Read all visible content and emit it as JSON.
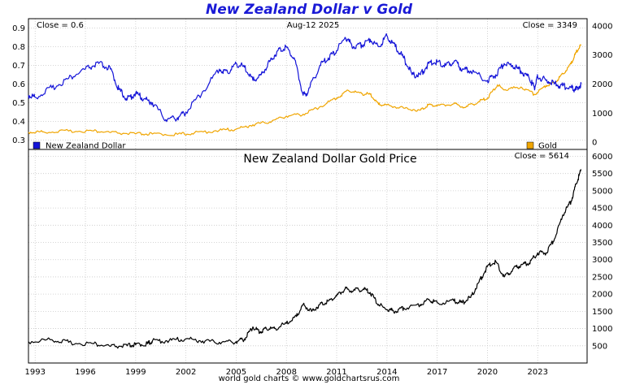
{
  "title": "New Zealand Dollar v Gold",
  "credit": "world gold charts © www.goldchartsrus.com",
  "colors": {
    "nzd": "#1414d8",
    "gold": "#f0a500",
    "price": "#000000",
    "grid": "#c8c8c8"
  },
  "chart_data": [
    {
      "type": "line",
      "title": "",
      "date_label": "Aug-12  2025",
      "left_close_label": "Close = 0.6",
      "right_close_label": "Close = 3349",
      "ylim_left": [
        0.25,
        0.95
      ],
      "ylim_right": [
        -250,
        4250
      ],
      "yticks_left": [
        "0.9",
        "0.8",
        "0.7",
        "0.6",
        "0.5",
        "0.4",
        "0.3"
      ],
      "yticks_right": [
        "4000",
        "3000",
        "2000",
        "1000",
        "0"
      ],
      "grid": true,
      "legend": [
        "bottom-left",
        "bottom-right"
      ],
      "series": [
        {
          "name": "New Zealand Dollar",
          "axis": "left",
          "color": "#1414d8",
          "x": [
            1992.6,
            1993.0,
            1994.0,
            1995.0,
            1996.0,
            1996.8,
            1997.5,
            1998.0,
            1998.5,
            1999.0,
            1999.5,
            2000.0,
            2000.8,
            2001.5,
            2002.0,
            2003.0,
            2004.0,
            2004.5,
            2005.0,
            2005.5,
            2006.0,
            2006.5,
            2007.0,
            2007.5,
            2008.0,
            2008.5,
            2009.0,
            2009.3,
            2010.0,
            2010.5,
            2011.0,
            2011.5,
            2012.0,
            2012.5,
            2013.0,
            2013.5,
            2014.0,
            2014.5,
            2015.0,
            2015.5,
            2016.0,
            2016.5,
            2017.0,
            2017.5,
            2018.0,
            2018.5,
            2019.0,
            2020.0,
            2020.5,
            2021.0,
            2021.5,
            2022.0,
            2022.5,
            2022.8,
            2023.0,
            2023.5,
            2024.0,
            2024.5,
            2025.0,
            2025.3,
            2025.6
          ],
          "y": [
            0.54,
            0.53,
            0.58,
            0.63,
            0.68,
            0.71,
            0.68,
            0.57,
            0.52,
            0.55,
            0.52,
            0.5,
            0.41,
            0.42,
            0.45,
            0.56,
            0.68,
            0.66,
            0.71,
            0.69,
            0.62,
            0.65,
            0.72,
            0.78,
            0.8,
            0.73,
            0.54,
            0.56,
            0.7,
            0.74,
            0.78,
            0.85,
            0.8,
            0.81,
            0.84,
            0.8,
            0.86,
            0.8,
            0.74,
            0.65,
            0.65,
            0.71,
            0.72,
            0.7,
            0.72,
            0.68,
            0.67,
            0.62,
            0.65,
            0.71,
            0.7,
            0.67,
            0.63,
            0.58,
            0.64,
            0.62,
            0.6,
            0.59,
            0.58,
            0.57,
            0.6
          ]
        },
        {
          "name": "Gold",
          "axis": "right",
          "color": "#f0a500",
          "x": [
            1992.6,
            1993.5,
            1995.0,
            1996.5,
            1997.5,
            1999.0,
            2000.0,
            2001.5,
            2002.5,
            2004.0,
            2005.0,
            2006.0,
            2007.0,
            2008.0,
            2009.0,
            2010.0,
            2011.0,
            2011.7,
            2012.5,
            2013.0,
            2013.5,
            2014.0,
            2015.0,
            2016.0,
            2016.5,
            2017.0,
            2018.0,
            2018.7,
            2019.5,
            2020.0,
            2020.6,
            2021.0,
            2022.0,
            2022.8,
            2023.5,
            2024.0,
            2024.5,
            2025.0,
            2025.3,
            2025.6
          ],
          "y": [
            345,
            355,
            385,
            390,
            330,
            285,
            280,
            270,
            315,
            410,
            445,
            600,
            700,
            900,
            960,
            1220,
            1520,
            1780,
            1670,
            1650,
            1300,
            1280,
            1170,
            1100,
            1300,
            1250,
            1320,
            1200,
            1400,
            1520,
            1970,
            1800,
            1900,
            1650,
            1950,
            2050,
            2350,
            2700,
            3100,
            3349
          ]
        }
      ]
    },
    {
      "type": "line",
      "title": "New Zealand Dollar Gold Price",
      "close_label": "Close = 5614",
      "ylim": [
        0,
        6200
      ],
      "yticks": [
        "6000",
        "5500",
        "5000",
        "4500",
        "4000",
        "3500",
        "3000",
        "2500",
        "2000",
        "1500",
        "1000",
        "500"
      ],
      "xticks": [
        "1993",
        "1996",
        "1999",
        "2002",
        "2005",
        "2008",
        "2011",
        "2014",
        "2017",
        "2020",
        "2023"
      ],
      "xlim": [
        1992.6,
        2025.95
      ],
      "grid": true,
      "series": [
        {
          "color": "#000000",
          "x": [
            1992.6,
            1994.0,
            1995.0,
            1996.5,
            1997.5,
            1998.5,
            1999.0,
            1999.7,
            2000.0,
            2001.0,
            2002.0,
            2003.0,
            2004.0,
            2005.0,
            2005.5,
            2006.0,
            2006.4,
            2006.8,
            2007.3,
            2008.0,
            2008.6,
            2009.0,
            2009.5,
            2010.0,
            2010.5,
            2011.0,
            2011.5,
            2012.0,
            2012.6,
            2013.0,
            2013.5,
            2014.0,
            2014.5,
            2015.0,
            2016.0,
            2016.5,
            2017.0,
            2018.0,
            2018.5,
            2019.0,
            2019.5,
            2020.0,
            2020.5,
            2021.0,
            2021.5,
            2022.0,
            2022.5,
            2023.0,
            2023.5,
            2024.0,
            2024.5,
            2025.0,
            2025.3,
            2025.6
          ],
          "y": [
            620,
            680,
            600,
            560,
            480,
            500,
            530,
            560,
            640,
            650,
            700,
            640,
            600,
            620,
            700,
            1050,
            900,
            1000,
            1000,
            1150,
            1350,
            1700,
            1500,
            1700,
            1800,
            1950,
            2150,
            2100,
            2150,
            2050,
            1700,
            1550,
            1500,
            1600,
            1700,
            1850,
            1750,
            1800,
            1750,
            1900,
            2350,
            2800,
            2950,
            2500,
            2700,
            2850,
            2900,
            3200,
            3200,
            3600,
            4300,
            4700,
            5200,
            5614
          ]
        }
      ]
    }
  ]
}
